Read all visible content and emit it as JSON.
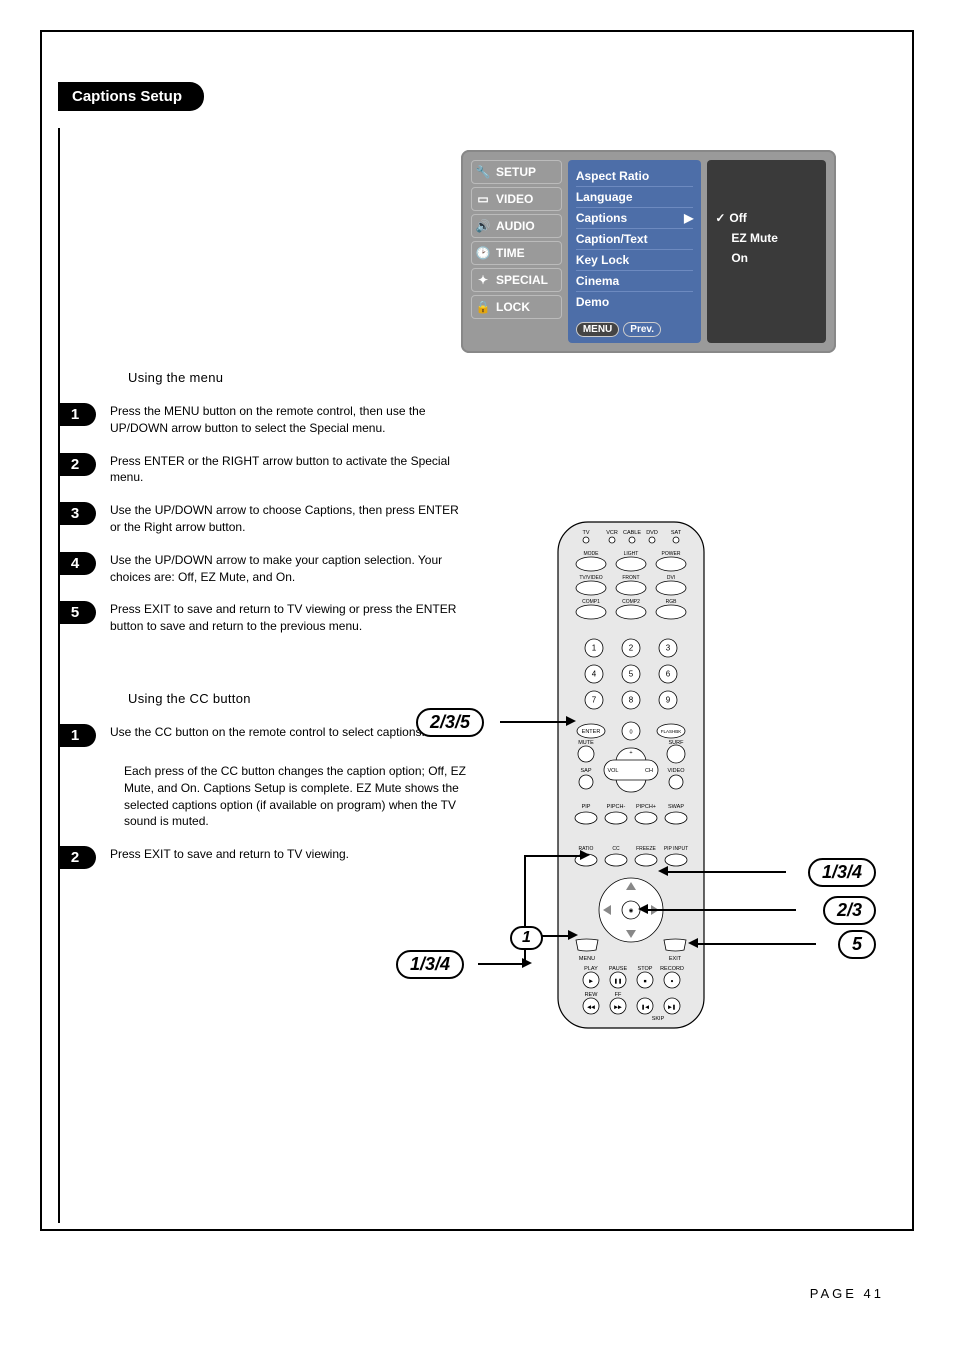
{
  "title": "Captions Setup",
  "page_number": "PAGE 41",
  "osd": {
    "left": [
      "SETUP",
      "VIDEO",
      "AUDIO",
      "TIME",
      "SPECIAL",
      "LOCK"
    ],
    "center": [
      "Aspect Ratio",
      "Language",
      "Captions",
      "Caption/Text",
      "Key Lock",
      "Cinema",
      "Demo"
    ],
    "center_highlight_index": 2,
    "bottom": [
      "MENU",
      "Prev."
    ],
    "right": [
      "Off",
      "EZ Mute",
      "On"
    ],
    "right_selected_index": 0
  },
  "menu_section_title": "Using the menu",
  "menu_steps": [
    {
      "n": "1",
      "t": "Press the MENU button on the remote control, then use the UP/DOWN arrow button to select the Special menu."
    },
    {
      "n": "2",
      "t": "Press ENTER or the RIGHT arrow button to activate the Special menu."
    },
    {
      "n": "3",
      "t": "Use the UP/DOWN arrow to choose Captions, then press ENTER or the Right arrow button."
    },
    {
      "n": "4",
      "t": "Use the UP/DOWN arrow to make your caption selection. Your choices are: Off, EZ Mute, and On."
    },
    {
      "n": "5",
      "t": "Press EXIT to save and return to TV viewing or press the ENTER button to save and return to the previous menu."
    }
  ],
  "cc_section_title": "Using the CC button",
  "cc_steps": [
    {
      "n": "1",
      "t": "Use the CC button on the remote control to select captions."
    },
    {
      "n": "",
      "t": "Each press of the CC button changes the caption option; Off, EZ Mute, and On. Captions Setup is complete.\nEZ Mute shows the selected captions option (if available on program) when the TV sound is muted."
    },
    {
      "n": "2",
      "t": "Press EXIT to save and return to TV viewing."
    }
  ],
  "callouts": {
    "left_enter": "2/3/5",
    "left_menu": "1/3/4",
    "middle": "1",
    "right_arrows": "1/3/4",
    "right_enter": "2/3",
    "right_exit": "5"
  },
  "remote_labels": {
    "row_top": [
      "TV",
      "VCR",
      "CABLE",
      "DVD",
      "SAT"
    ],
    "row2": [
      "MODE",
      "LIGHT",
      "POWER"
    ],
    "row3": [
      "TV/VIDEO",
      "FRONT",
      "DVI"
    ],
    "row4": [
      "COMP1",
      "COMP2",
      "RGB"
    ],
    "enter": "ENTER",
    "flashbk": "FLASHBK",
    "mute": "MUTE",
    "surf": "SURF",
    "sap": "SAP",
    "video": "VIDEO",
    "vol": "VOL",
    "ch": "CH",
    "pip_row": [
      "PIP",
      "PIPCH-",
      "PIPCH+",
      "SWAP"
    ],
    "mid_row": [
      "RATIO",
      "CC",
      "FREEZE",
      "PIP INPUT"
    ],
    "menu": "MENU",
    "exit": "EXIT",
    "play_row": [
      "PLAY",
      "PAUSE",
      "STOP",
      "RECORD"
    ],
    "rew_row": [
      "REW",
      "FF"
    ],
    "skip": "SKIP"
  },
  "colors": {
    "osd_blue": "#4d6ea8",
    "osd_gray": "#9a9a9a",
    "osd_dark": "#3a3a3a"
  }
}
